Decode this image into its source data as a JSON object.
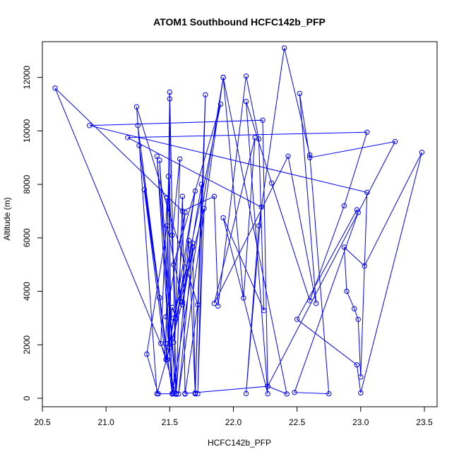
{
  "chart_data": {
    "type": "line",
    "title": "ATOM1 Southbound HCFC142b_PFP",
    "xlabel": "HCFC142b_PFP",
    "ylabel": "Altitude (m)",
    "xlim": [
      20.5,
      23.6
    ],
    "ylim": [
      0,
      13100
    ],
    "x_ticks": [
      "20.5",
      "21.0",
      "21.5",
      "22.0",
      "22.5",
      "23.0",
      "23.5"
    ],
    "y_ticks": [
      "0",
      "2000",
      "4000",
      "6000",
      "8000",
      "10000",
      "12000"
    ],
    "grid": false,
    "legend": "none",
    "colors": {
      "series": "#0000ff",
      "axis": "#000000"
    },
    "markers": "open-circle",
    "series": [
      {
        "values": [
          [
            21.42,
            3760
          ],
          [
            21.3,
            7800
          ],
          [
            21.47,
            1450
          ],
          [
            21.52,
            3400
          ],
          [
            21.55,
            3000
          ],
          [
            21.52,
            6100
          ],
          [
            21.58,
            8950
          ],
          [
            21.53,
            200
          ],
          [
            21.47,
            3050
          ],
          [
            21.62,
            6950
          ],
          [
            21.53,
            2100
          ],
          [
            21.7,
            7750
          ],
          [
            21.48,
            1450
          ],
          [
            21.25,
            10200
          ],
          [
            21.52,
            160
          ],
          [
            21.4,
            9050
          ],
          [
            21.55,
            180
          ],
          [
            21.43,
            2050
          ],
          [
            21.48,
            7500
          ],
          [
            21.5,
            1900
          ],
          [
            21.5,
            11450
          ],
          [
            21.55,
            160
          ],
          [
            21.65,
            5900
          ],
          [
            21.7,
            170
          ],
          [
            21.78,
            11350
          ],
          [
            21.72,
            170
          ],
          [
            21.77,
            7100
          ],
          [
            21.55,
            3000
          ],
          [
            21.9,
            11000
          ],
          [
            21.53,
            5000
          ],
          [
            21.49,
            8300
          ],
          [
            21.52,
            180
          ],
          [
            21.42,
            8900
          ],
          [
            21.55,
            170
          ],
          [
            21.41,
            170
          ],
          [
            21.32,
            1650
          ],
          [
            21.48,
            6450
          ],
          [
            21.6,
            3500
          ],
          [
            21.68,
            5650
          ],
          [
            21.57,
            160
          ],
          [
            21.92,
            12000
          ],
          [
            21.52,
            170
          ],
          [
            21.26,
            9450
          ],
          [
            21.47,
            2050
          ],
          [
            21.5,
            11200
          ],
          [
            21.55,
            150
          ],
          [
            21.6,
            7550
          ],
          [
            21.62,
            160
          ],
          [
            21.72,
            3500
          ],
          [
            21.24,
            10900
          ],
          [
            21.4,
            170
          ],
          [
            21.6,
            3600
          ],
          [
            21.75,
            8000
          ],
          [
            21.7,
            200
          ],
          [
            21.68,
            5800
          ],
          [
            21.53,
            3000
          ],
          [
            21.48,
            1450
          ],
          [
            20.6,
            11600
          ],
          [
            21.6,
            7000
          ],
          [
            21.85,
            7550
          ],
          [
            21.88,
            3450
          ],
          [
            22.1,
            12050
          ],
          [
            22.2,
            9700
          ],
          [
            22.24,
            3280
          ],
          [
            21.92,
            6750
          ],
          [
            22.27,
            170
          ],
          [
            22.1,
            11100
          ],
          [
            22.3,
            8050
          ],
          [
            22.6,
            3650
          ],
          [
            22.87,
            7200
          ],
          [
            23.05,
            9950
          ],
          [
            21.17,
            9750
          ],
          [
            22.22,
            7150
          ],
          [
            22.1,
            180
          ],
          [
            22.2,
            6450
          ],
          [
            22.4,
            13100
          ],
          [
            22.6,
            9100
          ],
          [
            22.75,
            170
          ],
          [
            22.48,
            220
          ],
          [
            22.98,
            6950
          ],
          [
            22.97,
            7050
          ],
          [
            22.5,
            2950
          ],
          [
            22.97,
            1250
          ],
          [
            23.0,
            200
          ],
          [
            23.48,
            9200
          ],
          [
            23.03,
            4950
          ],
          [
            22.87,
            5650
          ],
          [
            22.89,
            4000
          ],
          [
            22.95,
            3350
          ],
          [
            22.98,
            2950
          ],
          [
            23.0,
            800
          ],
          [
            23.05,
            7700
          ],
          [
            20.87,
            10200
          ],
          [
            22.23,
            10400
          ],
          [
            22.27,
            450
          ],
          [
            22.42,
            160
          ],
          [
            21.92,
            12000
          ],
          [
            22.08,
            3750
          ],
          [
            22.17,
            9750
          ],
          [
            21.85,
            3550
          ],
          [
            22.43,
            9050
          ],
          [
            22.65,
            3550
          ],
          [
            22.52,
            11400
          ],
          [
            22.6,
            9000
          ],
          [
            23.27,
            9600
          ],
          [
            22.27,
            450
          ],
          [
            21.62,
            180
          ]
        ]
      }
    ]
  }
}
